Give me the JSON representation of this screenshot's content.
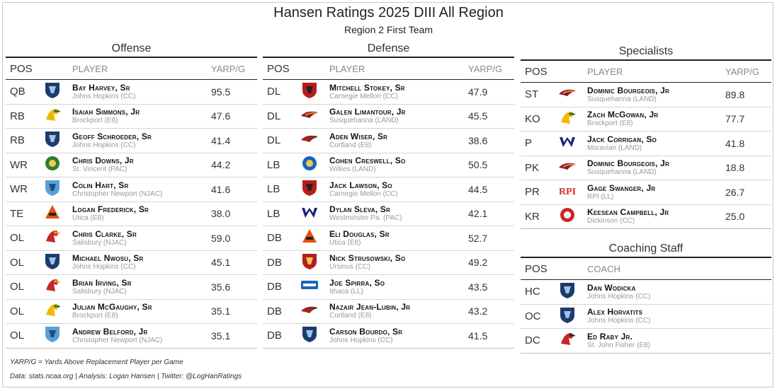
{
  "header": {
    "title": "Hansen Ratings 2025 DIII All Region",
    "subtitle": "Region 2 First Team"
  },
  "colors": {
    "header_rule": "#222222",
    "row_rule": "#d5d5d5",
    "muted": "#999999"
  },
  "offense": {
    "title": "Offense",
    "cols": {
      "pos": "POS",
      "player": "PLAYER",
      "val": "YARP/G"
    },
    "rows": [
      {
        "pos": "QB",
        "name": "Bay Harvey, Sr",
        "school": "Johns Hopkins (CC)",
        "val": "95.5",
        "logo": "blue-jay-logo"
      },
      {
        "pos": "RB",
        "name": "Isaiah Simmons, Jr",
        "school": "Brockport (E8)",
        "val": "47.6",
        "logo": "golden-eagle-logo"
      },
      {
        "pos": "RB",
        "name": "Geoff Schroeder, Sr",
        "school": "Johns Hopkins (CC)",
        "val": "41.4",
        "logo": "blue-jay-logo"
      },
      {
        "pos": "WR",
        "name": "Chris Downs, Jr",
        "school": "St. Vincent (PAC)",
        "val": "44.2",
        "logo": "bearcat-logo"
      },
      {
        "pos": "WR",
        "name": "Colin Hart, Sr",
        "school": "Christopher Newport (NJAC)",
        "val": "41.6",
        "logo": "captain-logo"
      },
      {
        "pos": "TE",
        "name": "Logan Frederick, Sr",
        "school": "Utica (E8)",
        "val": "38.0",
        "logo": "pioneer-logo"
      },
      {
        "pos": "OL",
        "name": "Chris Clarke, Sr",
        "school": "Salisbury (NJAC)",
        "val": "59.0",
        "logo": "sea-gull-logo"
      },
      {
        "pos": "OL",
        "name": "Michael Nwosu, Sr",
        "school": "Johns Hopkins (CC)",
        "val": "45.1",
        "logo": "blue-jay-logo"
      },
      {
        "pos": "OL",
        "name": "Brian Irving, Sr",
        "school": "Salisbury (NJAC)",
        "val": "35.6",
        "logo": "sea-gull-logo"
      },
      {
        "pos": "OL",
        "name": "Julian McGaughy, Sr",
        "school": "Brockport (E8)",
        "val": "35.1",
        "logo": "golden-eagle-logo"
      },
      {
        "pos": "OL",
        "name": "Andrew Belford, Jr",
        "school": "Christopher Newport (NJAC)",
        "val": "35.1",
        "logo": "captain-logo"
      }
    ]
  },
  "defense": {
    "title": "Defense",
    "cols": {
      "pos": "POS",
      "player": "PLAYER",
      "val": "YARP/G"
    },
    "rows": [
      {
        "pos": "DL",
        "name": "Mitchell Stokey, Sr",
        "school": "Carnegie Mellon (CC)",
        "val": "47.9",
        "logo": "tartan-logo"
      },
      {
        "pos": "DL",
        "name": "Galen Limantour, Jr",
        "school": "Susquehanna (LAND)",
        "val": "45.5",
        "logo": "river-hawk-logo"
      },
      {
        "pos": "DL",
        "name": "Aden Wiser, Sr",
        "school": "Cortland (E8)",
        "val": "38.6",
        "logo": "red-dragon-logo"
      },
      {
        "pos": "LB",
        "name": "Cohen Creswell, So",
        "school": "Wilkes (LAND)",
        "val": "50.5",
        "logo": "colonel-logo"
      },
      {
        "pos": "LB",
        "name": "Jack Lawson, So",
        "school": "Carnegie Mellon (CC)",
        "val": "44.5",
        "logo": "tartan-logo"
      },
      {
        "pos": "LB",
        "name": "Dylan Sleva, Sr",
        "school": "Westminster Pa. (PAC)",
        "val": "42.1",
        "logo": "titan-logo"
      },
      {
        "pos": "DB",
        "name": "Eli Douglas, Sr",
        "school": "Utica (E8)",
        "val": "52.7",
        "logo": "pioneer-logo"
      },
      {
        "pos": "DB",
        "name": "Nick Strusowski, So",
        "school": "Ursinus (CC)",
        "val": "49.2",
        "logo": "bear-logo"
      },
      {
        "pos": "DB",
        "name": "Joe Spirra, So",
        "school": "Ithaca (LL)",
        "val": "43.5",
        "logo": "bomber-logo"
      },
      {
        "pos": "DB",
        "name": "Nazair Jean-Lubin, Jr",
        "school": "Cortland (E8)",
        "val": "43.2",
        "logo": "red-dragon-logo"
      },
      {
        "pos": "DB",
        "name": "Carson Bourdo, Sr",
        "school": "Johns Hopkins (CC)",
        "val": "41.5",
        "logo": "blue-jay-logo"
      }
    ]
  },
  "specialists": {
    "title": "Specialists",
    "cols": {
      "pos": "POS",
      "player": "PLAYER",
      "val": "YARP/G"
    },
    "rows": [
      {
        "pos": "ST",
        "name": "Dominic Bourgeois, Jr",
        "school": "Susquehanna (LAND)",
        "val": "89.8",
        "logo": "river-hawk-logo"
      },
      {
        "pos": "KO",
        "name": "Zach McGowan, Jr",
        "school": "Brockport (E8)",
        "val": "77.7",
        "logo": "golden-eagle-logo"
      },
      {
        "pos": "P",
        "name": "Jack Corrigan, So",
        "school": "Moravian (LAND)",
        "val": "41.8",
        "logo": "greyhound-logo"
      },
      {
        "pos": "PK",
        "name": "Dominic Bourgeois, Jr",
        "school": "Susquehanna (LAND)",
        "val": "18.8",
        "logo": "river-hawk-logo"
      },
      {
        "pos": "PR",
        "name": "Gage Swanger, Jr",
        "school": "RPI (LL)",
        "val": "26.7",
        "logo": "rpi-logo"
      },
      {
        "pos": "KR",
        "name": "Keesean Campbell, Jr",
        "school": "Dickinson (CC)",
        "val": "25.0",
        "logo": "red-devil-logo"
      }
    ]
  },
  "coaching": {
    "title": "Coaching Staff",
    "cols": {
      "pos": "POS",
      "coach": "COACH"
    },
    "rows": [
      {
        "pos": "HC",
        "name": "Dan Wodicka",
        "school": "Johns Hopkins (CC)",
        "logo": "blue-jay-logo"
      },
      {
        "pos": "OC",
        "name": "Alex Horvatits",
        "school": "Johns Hopkins (CC)",
        "logo": "blue-jay-logo"
      },
      {
        "pos": "DC",
        "name": "Ed Raby Jr.",
        "school": "St. John Fisher (E8)",
        "logo": "cardinal-logo"
      }
    ]
  },
  "rpi_text": "RPI",
  "footer": {
    "note": "YARP/G = Yards Above Replacement Player per Game",
    "credits": "Data: stats.ncaa.org | Analysis: Logan Hansen | Twitter: @LogHanRatings"
  }
}
